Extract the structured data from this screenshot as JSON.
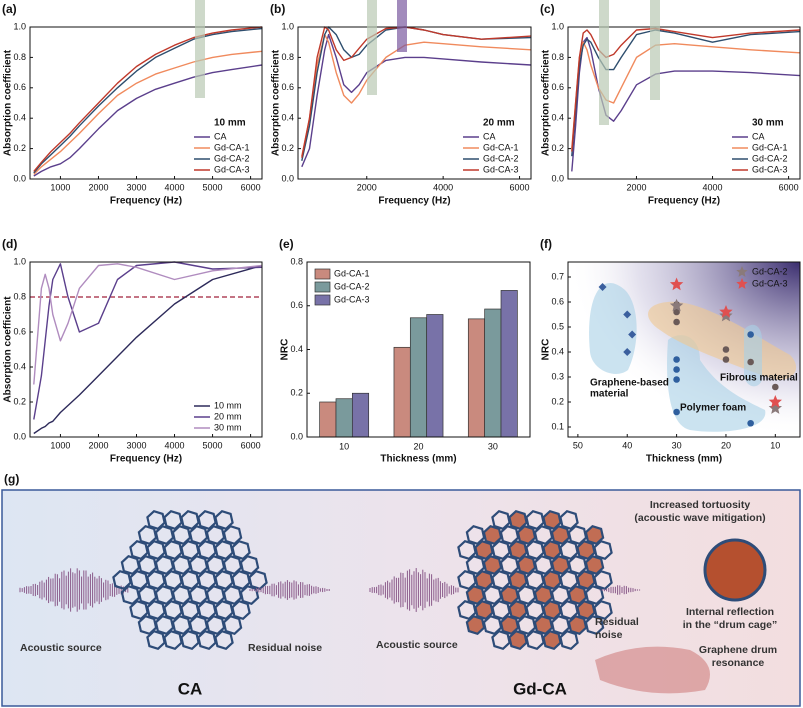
{
  "chart_data": [
    {
      "type": "line",
      "label": "(a)",
      "xlabel": "Frequency (Hz)",
      "ylabel": "Absorption coefficient",
      "annotation": "10 mm",
      "legend": "lower right",
      "x": [
        300,
        500,
        750,
        1000,
        1250,
        1500,
        2000,
        2500,
        3000,
        3500,
        4000,
        4500,
        5000,
        5500,
        6300
      ],
      "xlim": [
        200,
        6300
      ],
      "xticks": [
        1000,
        2000,
        3000,
        4000,
        5000,
        6000
      ],
      "ylim": [
        0,
        1
      ],
      "yticks": [
        {
          "value": 0,
          "label": "0.0"
        },
        0.2,
        0.4,
        0.6,
        0.8,
        {
          "value": 1,
          "label": "1.0"
        }
      ],
      "series": [
        {
          "name": "CA",
          "color": "#5b3f8c",
          "values": [
            0.02,
            0.05,
            0.08,
            0.1,
            0.14,
            0.2,
            0.33,
            0.45,
            0.53,
            0.59,
            0.63,
            0.67,
            0.7,
            0.72,
            0.75
          ]
        },
        {
          "name": "Gd-CA-1",
          "color": "#f08a5d",
          "values": [
            0.03,
            0.08,
            0.13,
            0.18,
            0.24,
            0.3,
            0.43,
            0.55,
            0.63,
            0.69,
            0.73,
            0.77,
            0.8,
            0.82,
            0.84
          ]
        },
        {
          "name": "Gd-CA-2",
          "color": "#2e4e6e",
          "values": [
            0.04,
            0.1,
            0.16,
            0.22,
            0.28,
            0.35,
            0.48,
            0.6,
            0.71,
            0.8,
            0.86,
            0.92,
            0.95,
            0.97,
            0.99
          ]
        },
        {
          "name": "Gd-CA-3",
          "color": "#c0392b",
          "values": [
            0.05,
            0.11,
            0.18,
            0.24,
            0.3,
            0.37,
            0.5,
            0.63,
            0.74,
            0.82,
            0.88,
            0.93,
            0.96,
            0.98,
            1.0
          ]
        }
      ]
    },
    {
      "type": "line",
      "label": "(b)",
      "xlabel": "Frequency (Hz)",
      "ylabel": "Absorption coefficient",
      "annotation": "20 mm",
      "legend": "lower right",
      "x": [
        300,
        500,
        700,
        900,
        1000,
        1200,
        1400,
        1600,
        1800,
        2000,
        2500,
        3000,
        3500,
        4000,
        5000,
        6300
      ],
      "xlim": [
        200,
        6300
      ],
      "xticks": [
        2000,
        4000,
        6000
      ],
      "ylim": [
        0,
        1
      ],
      "yticks": [
        {
          "value": 0,
          "label": "0.0"
        },
        0.2,
        0.4,
        0.6,
        0.8,
        {
          "value": 1,
          "label": "1.0"
        }
      ],
      "series": [
        {
          "name": "CA",
          "color": "#5b3f8c",
          "values": [
            0.08,
            0.2,
            0.55,
            0.85,
            0.95,
            0.8,
            0.62,
            0.57,
            0.62,
            0.7,
            0.78,
            0.8,
            0.8,
            0.79,
            0.77,
            0.75
          ]
        },
        {
          "name": "Gd-CA-1",
          "color": "#f08a5d",
          "values": [
            0.15,
            0.4,
            0.75,
            0.95,
            0.9,
            0.7,
            0.55,
            0.5,
            0.56,
            0.65,
            0.8,
            0.88,
            0.9,
            0.89,
            0.87,
            0.85
          ]
        },
        {
          "name": "Gd-CA-2",
          "color": "#2e4e6e",
          "values": [
            0.12,
            0.35,
            0.7,
            0.95,
            1.0,
            0.95,
            0.85,
            0.8,
            0.82,
            0.88,
            0.98,
            1.0,
            0.98,
            0.95,
            0.92,
            0.93
          ]
        },
        {
          "name": "Gd-CA-3",
          "color": "#c0392b",
          "values": [
            0.14,
            0.4,
            0.8,
            1.0,
            0.98,
            0.85,
            0.78,
            0.8,
            0.86,
            0.92,
            0.99,
            1.0,
            0.98,
            0.95,
            0.92,
            0.94
          ]
        }
      ]
    },
    {
      "type": "line",
      "label": "(c)",
      "xlabel": "Frequency (Hz)",
      "ylabel": "Absorption coefficient",
      "annotation": "30 mm",
      "legend": "lower right",
      "x": [
        300,
        400,
        500,
        600,
        700,
        800,
        1000,
        1200,
        1400,
        1600,
        2000,
        2500,
        3000,
        4000,
        5000,
        6300
      ],
      "xlim": [
        200,
        6300
      ],
      "xticks": [
        2000,
        4000,
        6000
      ],
      "ylim": [
        0,
        1
      ],
      "yticks": [
        {
          "value": 0,
          "label": "0.0"
        },
        0.2,
        0.4,
        0.6,
        0.8,
        {
          "value": 1,
          "label": "1.0"
        }
      ],
      "series": [
        {
          "name": "CA",
          "color": "#5b3f8c",
          "values": [
            0.05,
            0.35,
            0.7,
            0.9,
            0.93,
            0.85,
            0.6,
            0.42,
            0.38,
            0.45,
            0.62,
            0.69,
            0.71,
            0.71,
            0.7,
            0.68
          ]
        },
        {
          "name": "Gd-CA-1",
          "color": "#f08a5d",
          "values": [
            0.2,
            0.5,
            0.8,
            0.9,
            0.85,
            0.75,
            0.6,
            0.52,
            0.5,
            0.6,
            0.8,
            0.88,
            0.89,
            0.87,
            0.85,
            0.83
          ]
        },
        {
          "name": "Gd-CA-2",
          "color": "#2e4e6e",
          "values": [
            0.15,
            0.45,
            0.75,
            0.88,
            0.92,
            0.9,
            0.8,
            0.72,
            0.72,
            0.8,
            0.95,
            0.98,
            0.96,
            0.9,
            0.95,
            0.97
          ]
        },
        {
          "name": "Gd-CA-3",
          "color": "#c0392b",
          "values": [
            0.18,
            0.5,
            0.8,
            0.96,
            0.98,
            0.95,
            0.85,
            0.8,
            0.82,
            0.88,
            0.98,
            0.99,
            0.97,
            0.93,
            0.96,
            0.98
          ]
        }
      ]
    },
    {
      "type": "line",
      "label": "(d)",
      "xlabel": "Frequency (Hz)",
      "ylabel": "Absorption coefficient",
      "legend": "lower right",
      "reference_line": 0.8,
      "reference_color": "#a0203a",
      "x": [
        300,
        500,
        600,
        700,
        800,
        1000,
        1200,
        1500,
        2000,
        2500,
        3000,
        4000,
        5000,
        6300
      ],
      "xlim": [
        200,
        6300
      ],
      "xticks": [
        1000,
        2000,
        3000,
        4000,
        5000,
        6000
      ],
      "ylim": [
        0,
        1
      ],
      "yticks": [
        {
          "value": 0,
          "label": "0.0"
        },
        0.2,
        0.4,
        0.6,
        0.8,
        {
          "value": 1,
          "label": "1.0"
        }
      ],
      "series": [
        {
          "name": "10 mm",
          "color": "#2d2a5a",
          "values": [
            0.02,
            0.05,
            0.06,
            0.08,
            0.09,
            0.14,
            0.18,
            0.24,
            0.35,
            0.46,
            0.57,
            0.76,
            0.9,
            0.98
          ]
        },
        {
          "name": "20 mm",
          "color": "#5b3f8c",
          "values": [
            0.1,
            0.35,
            0.55,
            0.75,
            0.9,
            0.99,
            0.8,
            0.6,
            0.65,
            0.9,
            0.98,
            1.0,
            0.96,
            0.97
          ]
        },
        {
          "name": "30 mm",
          "color": "#b08cbf",
          "values": [
            0.3,
            0.85,
            0.93,
            0.85,
            0.7,
            0.55,
            0.65,
            0.85,
            0.98,
            0.99,
            0.97,
            0.9,
            0.95,
            0.98
          ]
        }
      ]
    },
    {
      "type": "bar",
      "label": "(e)",
      "xlabel": "Thickness (mm)",
      "ylabel": "NRC",
      "legend": "upper left",
      "categories": [
        "10",
        "20",
        "30"
      ],
      "ylim": [
        0,
        0.8
      ],
      "yticks": [
        {
          "value": 0,
          "label": "0.0"
        },
        0.2,
        0.4,
        0.6,
        0.8
      ],
      "series": [
        {
          "name": "Gd-CA-1",
          "color": "#c98a7e",
          "values": [
            0.16,
            0.41,
            0.54
          ]
        },
        {
          "name": "Gd-CA-2",
          "color": "#7a9a9c",
          "values": [
            0.175,
            0.545,
            0.585
          ]
        },
        {
          "name": "Gd-CA-3",
          "color": "#7872a8",
          "values": [
            0.2,
            0.56,
            0.67
          ]
        }
      ]
    },
    {
      "type": "scatter",
      "label": "(f)",
      "xlabel": "Thickness (mm)",
      "ylabel": "NRC",
      "legend": "upper right",
      "xlim": [
        52,
        5
      ],
      "xticks": [
        50,
        40,
        30,
        20,
        10
      ],
      "ylim": [
        0.06,
        0.76
      ],
      "yticks": [
        0.1,
        0.2,
        0.3,
        0.4,
        0.5,
        0.6,
        0.7
      ],
      "regions": [
        {
          "lines": [
            "Graphene-based",
            "material"
          ]
        },
        {
          "lines": [
            "Polymer foam"
          ]
        },
        {
          "lines": [
            "Fibrous material"
          ]
        }
      ],
      "series": [
        {
          "color": "#3b5f9e",
          "marker": "diamond",
          "x": [
            45,
            40,
            39,
            40
          ],
          "values": [
            0.66,
            0.55,
            0.47,
            0.4
          ]
        },
        {
          "color": "#2f5f9e",
          "marker": "circle",
          "x": [
            30,
            30,
            30,
            30,
            15,
            15
          ],
          "values": [
            0.37,
            0.33,
            0.29,
            0.16,
            0.115,
            0.47
          ]
        },
        {
          "color": "#6a5a58",
          "marker": "circle",
          "x": [
            30,
            30,
            30,
            20,
            20,
            15,
            10
          ],
          "values": [
            0.59,
            0.56,
            0.52,
            0.41,
            0.37,
            0.36,
            0.26
          ]
        },
        {
          "name": "Gd-CA-2",
          "color": "#8a7a7a",
          "marker": "star",
          "x": [
            30,
            20,
            10
          ],
          "values": [
            0.585,
            0.545,
            0.175
          ]
        },
        {
          "name": "Gd-CA-3",
          "color": "#e05050",
          "marker": "star",
          "x": [
            30,
            20,
            10
          ],
          "values": [
            0.67,
            0.56,
            0.2
          ]
        }
      ]
    }
  ],
  "figure_g": {
    "label": "(g)",
    "left": {
      "source": "Acoustic source",
      "residual": "Residual noise",
      "title": "CA"
    },
    "right": {
      "source": "Acoustic source",
      "residual": [
        "Residual",
        "noise"
      ],
      "title": "Gd-CA",
      "tortuosity": [
        "Increased tortuosity",
        "(acoustic wave mitigation)"
      ],
      "reflection": [
        "Internal reflection",
        "in the “drum cage”"
      ],
      "drum": [
        "Graphene drum",
        "resonance"
      ]
    }
  }
}
